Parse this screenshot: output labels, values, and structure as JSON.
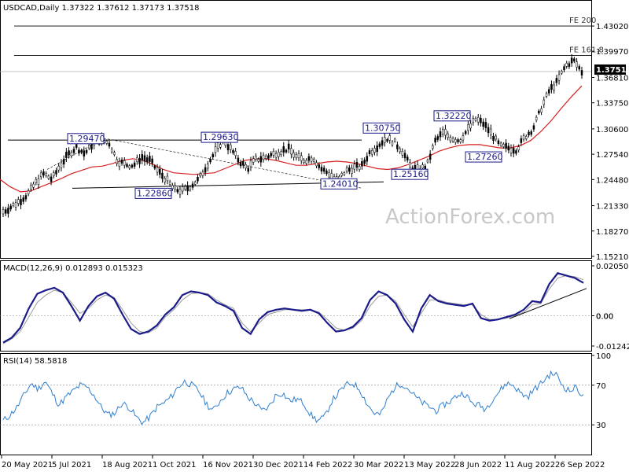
{
  "chart_data": [
    {
      "type": "line",
      "title": "USDCAD,Daily  1.37322 1.37612 1.37173 1.37518",
      "symbol": "USDCAD",
      "timeframe": "Daily",
      "ohlc": {
        "open": "1.37322",
        "high": "1.37612",
        "low": "1.37173",
        "close": "1.37518"
      },
      "last_price": "1.37518",
      "ylim": [
        1.1521,
        1.4502
      ],
      "y_ticks": [
        "1.43020",
        "1.39970",
        "1.36810",
        "1.33750",
        "1.30600",
        "1.27540",
        "1.24480",
        "1.21330",
        "1.18270",
        "1.15210"
      ],
      "x_ticks": [
        "20 May 2021",
        "5 Jul 2021",
        "18 Aug 2021",
        "1 Oct 2021",
        "16 Nov 2021",
        "30 Dec 2021",
        "14 Feb 2022",
        "30 Mar 2022",
        "13 May 2022",
        "28 Jun 2022",
        "11 Aug 2022",
        "26 Sep 2022"
      ],
      "series": [
        {
          "name": "",
          "color": "#1a1a8a",
          "values": [
            1.206,
            1.212,
            1.219,
            1.227,
            1.241,
            1.252,
            1.245,
            1.262,
            1.275,
            1.284,
            1.276,
            1.288,
            1.292,
            1.289,
            1.268,
            1.263,
            1.262,
            1.272,
            1.268,
            1.255,
            1.245,
            1.233,
            1.231,
            1.237,
            1.245,
            1.262,
            1.278,
            1.293,
            1.281,
            1.267,
            1.258,
            1.269,
            1.271,
            1.275,
            1.279,
            1.282,
            1.272,
            1.268,
            1.272,
            1.258,
            1.252,
            1.243,
            1.255,
            1.259,
            1.261,
            1.278,
            1.286,
            1.295,
            1.29,
            1.279,
            1.26,
            1.256,
            1.262,
            1.291,
            1.302,
            1.295,
            1.292,
            1.305,
            1.318,
            1.312,
            1.299,
            1.285,
            1.283,
            1.281,
            1.296,
            1.306,
            1.33,
            1.352,
            1.363,
            1.382,
            1.389,
            1.375
          ]
        },
        {
          "name": "",
          "color": "#d62020",
          "values": [
            1.245,
            1.236,
            1.23,
            1.231,
            1.236,
            1.241,
            1.246,
            1.252,
            1.256,
            1.26,
            1.261,
            1.264,
            1.268,
            1.27,
            1.268,
            1.263,
            1.257,
            1.253,
            1.252,
            1.251,
            1.252,
            1.253,
            1.258,
            1.263,
            1.268,
            1.27,
            1.27,
            1.268,
            1.265,
            1.262,
            1.262,
            1.264,
            1.266,
            1.267,
            1.266,
            1.264,
            1.261,
            1.258,
            1.257,
            1.259,
            1.263,
            1.268,
            1.273,
            1.279,
            1.283,
            1.286,
            1.287,
            1.287,
            1.285,
            1.283,
            1.283,
            1.286,
            1.292,
            1.303,
            1.316,
            1.331,
            1.345,
            1.358
          ]
        }
      ],
      "levels": [
        {
          "label": "1.29470",
          "value": 1.2947
        },
        {
          "label": "1.22860",
          "value": 1.2286
        },
        {
          "label": "1.29630",
          "value": 1.2963
        },
        {
          "label": "1.24010",
          "value": 1.2401
        },
        {
          "label": "1.30750",
          "value": 1.3075
        },
        {
          "label": "1.25160",
          "value": 1.2516
        },
        {
          "label": "1.32220",
          "value": 1.3222
        },
        {
          "label": "1.27260",
          "value": 1.2726
        }
      ],
      "fe_lines": [
        {
          "label": "FE 200",
          "value": 1.4302
        },
        {
          "label": "FE 161.8",
          "value": 1.3947
        }
      ],
      "watermark": "ActionForex.com"
    },
    {
      "type": "line",
      "title": "MACD(12,26,9) 0.012893 0.015323",
      "ylim": [
        -0.012428,
        0.020502
      ],
      "y_ticks": [
        "0.020502",
        "0.00",
        "-0.012428"
      ],
      "zero_label_secondary": "0.00",
      "series": [
        {
          "name": "",
          "color": "#1a1a8a",
          "values": [
            -0.011,
            -0.009,
            -0.005,
            0.003,
            0.009,
            0.0105,
            0.0115,
            0.0095,
            0.004,
            -0.002,
            0.004,
            0.008,
            0.0095,
            0.007,
            0.0005,
            -0.0055,
            -0.0075,
            -0.0065,
            -0.004,
            0.0005,
            0.0035,
            0.0085,
            0.01,
            0.0095,
            0.0085,
            0.0055,
            0.004,
            0.002,
            -0.005,
            -0.0075,
            -0.0015,
            0.0015,
            0.0025,
            0.003,
            0.0025,
            0.002,
            0.0025,
            0.001,
            -0.003,
            -0.0065,
            -0.006,
            -0.0045,
            -0.001,
            0.0065,
            0.01,
            0.0085,
            0.005,
            -0.0015,
            -0.0065,
            0.003,
            0.0085,
            0.006,
            0.005,
            0.0045,
            0.004,
            0.005,
            -0.001,
            -0.002,
            -0.0015,
            -0.0005,
            0.0005,
            0.0025,
            0.006,
            0.0055,
            0.013,
            0.0175,
            0.0165,
            0.0155,
            0.0135
          ]
        },
        {
          "name": "",
          "color": "#9a9a9a",
          "values": [
            -0.0115,
            -0.0095,
            -0.0065,
            -0.0005,
            0.0055,
            0.0085,
            0.0105,
            0.0095,
            0.0055,
            0.001,
            0.003,
            0.0065,
            0.0085,
            0.0075,
            0.0025,
            -0.003,
            -0.0065,
            -0.007,
            -0.005,
            -0.0005,
            0.0025,
            0.0065,
            0.009,
            0.0095,
            0.009,
            0.0065,
            0.0045,
            0.003,
            -0.003,
            -0.0065,
            -0.003,
            0.0005,
            0.0015,
            0.0025,
            0.0025,
            0.0025,
            0.0025,
            0.0015,
            -0.0015,
            -0.005,
            -0.006,
            -0.005,
            -0.002,
            0.004,
            0.008,
            0.0085,
            0.006,
            0.0005,
            -0.0045,
            0.001,
            0.0065,
            0.0065,
            0.0055,
            0.005,
            0.0045,
            0.0045,
            0.0005,
            -0.0015,
            -0.0015,
            -0.001,
            0.0,
            0.0015,
            0.0045,
            0.005,
            0.011,
            0.0155,
            0.0165,
            0.016,
            0.0148
          ]
        }
      ]
    },
    {
      "type": "line",
      "title": "RSI(14) 58.5818",
      "ylim": [
        0,
        100
      ],
      "y_ticks": [
        "100",
        "70",
        "30",
        "0"
      ],
      "series": [
        {
          "name": "",
          "color": "#2f7fd0",
          "values": [
            34,
            40,
            48,
            60,
            72,
            66,
            74,
            62,
            50,
            58,
            64,
            70,
            68,
            60,
            48,
            40,
            42,
            52,
            48,
            38,
            32,
            38,
            48,
            52,
            58,
            68,
            74,
            70,
            64,
            52,
            44,
            54,
            62,
            66,
            68,
            58,
            52,
            44,
            48,
            60,
            62,
            54,
            56,
            52,
            40,
            34,
            38,
            54,
            62,
            70,
            72,
            66,
            52,
            42,
            40,
            56,
            68,
            72,
            66,
            58,
            52,
            48,
            44,
            50,
            54,
            60,
            62,
            52,
            50,
            46,
            56,
            64,
            72,
            70,
            62,
            58,
            66,
            72,
            80,
            82,
            70,
            64,
            68,
            58
          ]
        }
      ]
    }
  ]
}
